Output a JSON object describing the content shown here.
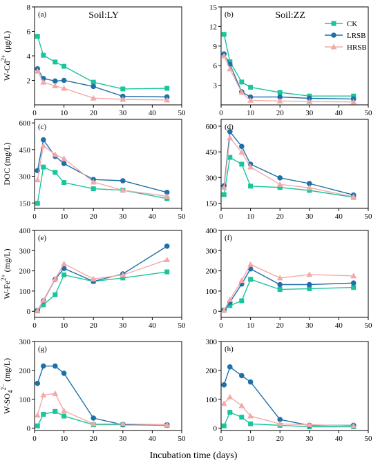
{
  "figure": {
    "xlabel": "Incubation time (days)",
    "colors": {
      "CK": "#19c59a",
      "LRSB": "#1f6fa8",
      "HRSB": "#f4a9a9"
    },
    "legend": [
      "CK",
      "LRSB",
      "HRSB"
    ],
    "soil_titles": [
      "Soil:LY",
      "Soil:ZZ"
    ],
    "row_ylabels": [
      {
        "prefix": "W-Cd",
        "sup": "2+",
        "suffix": " (μg/L)"
      },
      {
        "prefix": "DOC (mg/L)",
        "sup": "",
        "suffix": ""
      },
      {
        "prefix": "W-Fe",
        "sup": "2+",
        "suffix": "  (mg/L)"
      },
      {
        "prefix": "W-SO",
        "sub": "4",
        "sup": "2−",
        "suffix": " (mg/L)"
      }
    ]
  },
  "chart_data": [
    {
      "type": "line",
      "panel_label": "(a)",
      "title": "Soil:LY",
      "ylabel": "W-Cd2+ (μg/L)",
      "x": [
        1,
        3,
        7,
        10,
        20,
        30,
        45
      ],
      "xlim": [
        0,
        50
      ],
      "xticks": [
        0,
        10,
        20,
        30,
        40,
        50
      ],
      "ylim": [
        0,
        8
      ],
      "yticks": [
        2,
        4,
        6,
        8
      ],
      "series": [
        {
          "name": "CK",
          "values": [
            5.6,
            4.05,
            3.5,
            3.15,
            1.85,
            1.3,
            1.35
          ]
        },
        {
          "name": "LRSB",
          "values": [
            2.95,
            2.15,
            1.95,
            2.0,
            1.5,
            0.7,
            0.65
          ]
        },
        {
          "name": "HRSB",
          "values": [
            2.75,
            1.85,
            1.55,
            1.35,
            0.55,
            0.45,
            0.4
          ]
        }
      ]
    },
    {
      "type": "line",
      "panel_label": "(b)",
      "title": "Soil:ZZ",
      "ylabel": "",
      "x": [
        1,
        3,
        7,
        10,
        20,
        30,
        45
      ],
      "xlim": [
        0,
        50
      ],
      "xticks": [
        0,
        10,
        20,
        30,
        40,
        50
      ],
      "ylim": [
        0,
        15
      ],
      "yticks": [
        3,
        6,
        9,
        12,
        15
      ],
      "series": [
        {
          "name": "CK",
          "values": [
            10.8,
            6.6,
            3.5,
            2.7,
            1.9,
            1.35,
            1.35
          ]
        },
        {
          "name": "LRSB",
          "values": [
            7.8,
            6.2,
            2.0,
            1.2,
            1.2,
            1.0,
            0.9
          ]
        },
        {
          "name": "HRSB",
          "values": [
            7.5,
            5.5,
            1.9,
            0.7,
            0.6,
            0.5,
            0.45
          ]
        }
      ]
    },
    {
      "type": "line",
      "panel_label": "(c)",
      "title": "",
      "ylabel": "DOC (mg/L)",
      "x": [
        1,
        3,
        7,
        10,
        20,
        30,
        45
      ],
      "xlim": [
        0,
        50
      ],
      "xticks": [
        0,
        10,
        20,
        30,
        40,
        50
      ],
      "ylim": [
        120,
        620
      ],
      "yticks": [
        150,
        300,
        450,
        600
      ],
      "series": [
        {
          "name": "CK",
          "values": [
            148,
            352,
            322,
            265,
            230,
            222,
            175
          ]
        },
        {
          "name": "LRSB",
          "values": [
            332,
            505,
            412,
            372,
            282,
            275,
            210
          ]
        },
        {
          "name": "HRSB",
          "values": [
            280,
            472,
            422,
            400,
            268,
            222,
            188
          ]
        }
      ]
    },
    {
      "type": "line",
      "panel_label": "(d)",
      "title": "",
      "ylabel": "",
      "x": [
        1,
        3,
        7,
        10,
        20,
        30,
        45
      ],
      "xlim": [
        0,
        50
      ],
      "xticks": [
        0,
        10,
        20,
        30,
        40,
        50
      ],
      "ylim": [
        120,
        640
      ],
      "yticks": [
        150,
        300,
        450,
        600
      ],
      "series": [
        {
          "name": "CK",
          "values": [
            200,
            418,
            378,
            250,
            242,
            225,
            185
          ]
        },
        {
          "name": "LRSB",
          "values": [
            252,
            568,
            482,
            378,
            298,
            265,
            198
          ]
        },
        {
          "name": "HRSB",
          "values": [
            242,
            532,
            448,
            362,
            260,
            240,
            188
          ]
        }
      ]
    },
    {
      "type": "line",
      "panel_label": "(e)",
      "title": "",
      "ylabel": "W-Fe2+ (mg/L)",
      "x": [
        1,
        3,
        7,
        10,
        20,
        30,
        45
      ],
      "xlim": [
        0,
        50
      ],
      "xticks": [
        0,
        10,
        20,
        30,
        40,
        50
      ],
      "ylim": [
        -30,
        400
      ],
      "yticks": [
        0,
        100,
        200,
        300,
        400
      ],
      "series": [
        {
          "name": "CK",
          "values": [
            2,
            32,
            82,
            180,
            148,
            165,
            195
          ]
        },
        {
          "name": "LRSB",
          "values": [
            4,
            52,
            158,
            212,
            148,
            185,
            322
          ]
        },
        {
          "name": "HRSB",
          "values": [
            4,
            55,
            160,
            235,
            160,
            180,
            255
          ]
        }
      ]
    },
    {
      "type": "line",
      "panel_label": "(f)",
      "title": "",
      "ylabel": "",
      "x": [
        1,
        3,
        7,
        10,
        20,
        30,
        45
      ],
      "xlim": [
        0,
        50
      ],
      "xticks": [
        0,
        10,
        20,
        30,
        40,
        50
      ],
      "ylim": [
        -30,
        400
      ],
      "yticks": [
        0,
        100,
        200,
        300,
        400
      ],
      "series": [
        {
          "name": "CK",
          "values": [
            5,
            28,
            52,
            158,
            108,
            112,
            118
          ]
        },
        {
          "name": "LRSB",
          "values": [
            5,
            45,
            135,
            210,
            132,
            132,
            140
          ]
        },
        {
          "name": "HRSB",
          "values": [
            5,
            58,
            152,
            232,
            165,
            182,
            175
          ]
        }
      ]
    },
    {
      "type": "line",
      "panel_label": "(g)",
      "title": "",
      "ylabel": "W-SO42− (mg/L)",
      "x": [
        1,
        3,
        7,
        10,
        20,
        30,
        45
      ],
      "xlim": [
        0,
        50
      ],
      "xticks": [
        0,
        10,
        20,
        30,
        40,
        50
      ],
      "ylim": [
        -8,
        300
      ],
      "yticks": [
        0,
        100,
        200,
        300
      ],
      "series": [
        {
          "name": "CK",
          "values": [
            8,
            48,
            58,
            42,
            12,
            12,
            10
          ]
        },
        {
          "name": "LRSB",
          "values": [
            155,
            215,
            215,
            190,
            35,
            12,
            12
          ]
        },
        {
          "name": "HRSB",
          "values": [
            45,
            115,
            120,
            60,
            15,
            15,
            12
          ]
        }
      ]
    },
    {
      "type": "line",
      "panel_label": "(h)",
      "title": "",
      "ylabel": "",
      "x": [
        1,
        3,
        7,
        10,
        20,
        30,
        45
      ],
      "xlim": [
        0,
        50
      ],
      "xticks": [
        0,
        10,
        20,
        30,
        40,
        50
      ],
      "ylim": [
        -8,
        300
      ],
      "yticks": [
        0,
        100,
        200,
        300
      ],
      "series": [
        {
          "name": "CK",
          "values": [
            8,
            55,
            38,
            15,
            10,
            5,
            5
          ]
        },
        {
          "name": "LRSB",
          "values": [
            150,
            212,
            182,
            160,
            30,
            10,
            10
          ]
        },
        {
          "name": "HRSB",
          "values": [
            85,
            108,
            78,
            42,
            15,
            12,
            8
          ]
        }
      ]
    }
  ]
}
